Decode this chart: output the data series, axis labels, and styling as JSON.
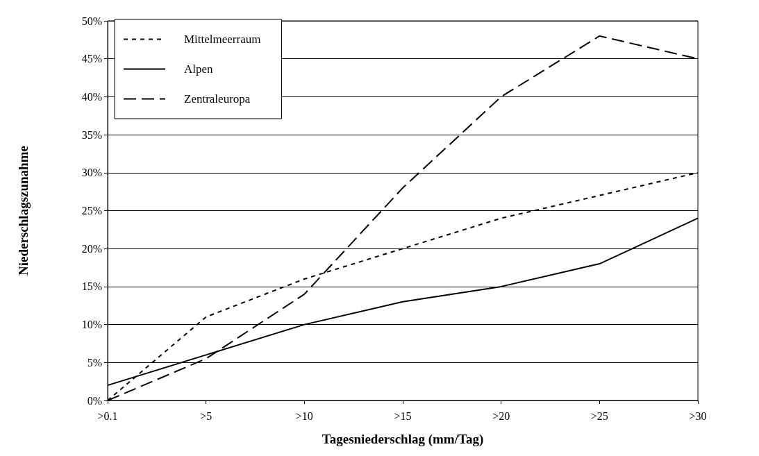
{
  "chart_data": {
    "type": "line",
    "xlabel": "Tagesniederschlag (mm/Tag)",
    "ylabel": "Niederschlagszunahme",
    "categories": [
      ">0.1",
      ">5",
      ">10",
      ">15",
      ">20",
      ">25",
      ">30"
    ],
    "series": [
      {
        "name": "Mittelmeerraum",
        "color": "#000000",
        "line_style": "dotted",
        "values": [
          0,
          11,
          16,
          20,
          24,
          27,
          30
        ]
      },
      {
        "name": "Alpen",
        "color": "#000000",
        "line_style": "solid",
        "values": [
          2,
          6,
          10,
          13,
          15,
          18,
          24
        ]
      },
      {
        "name": "Zentraleuropa",
        "color": "#000000",
        "line_style": "dashed",
        "values": [
          0,
          5.5,
          14,
          28,
          40,
          48,
          45
        ]
      }
    ],
    "ylim": [
      0,
      50
    ],
    "yticks": [
      {
        "value": 0,
        "label": "0%"
      },
      {
        "value": 5,
        "label": "5%"
      },
      {
        "value": 10,
        "label": "10%"
      },
      {
        "value": 15,
        "label": "15%"
      },
      {
        "value": 20,
        "label": "20%"
      },
      {
        "value": 25,
        "label": "25%"
      },
      {
        "value": 30,
        "label": "30%"
      },
      {
        "value": 35,
        "label": "35%"
      },
      {
        "value": 40,
        "label": "40%"
      },
      {
        "value": 45,
        "label": "45%"
      },
      {
        "value": 50,
        "label": "50%"
      }
    ],
    "grid": "y",
    "legend": "top left",
    "marker": "none"
  }
}
